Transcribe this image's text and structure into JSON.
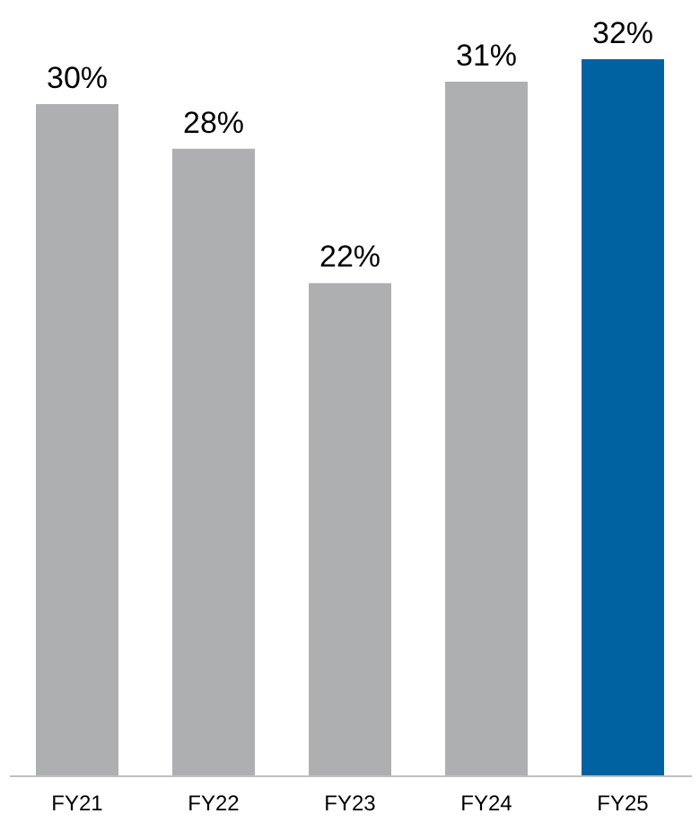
{
  "chart_data": {
    "type": "bar",
    "categories": [
      "FY21",
      "FY22",
      "FY23",
      "FY24",
      "FY25"
    ],
    "values": [
      30,
      28,
      22,
      31,
      32
    ],
    "colors": [
      "#aeafb1",
      "#aeafb1",
      "#aeafb1",
      "#aeafb1",
      "#0062a0"
    ],
    "value_labels": [
      "30%",
      "28%",
      "22%",
      "31%",
      "32%"
    ]
  }
}
